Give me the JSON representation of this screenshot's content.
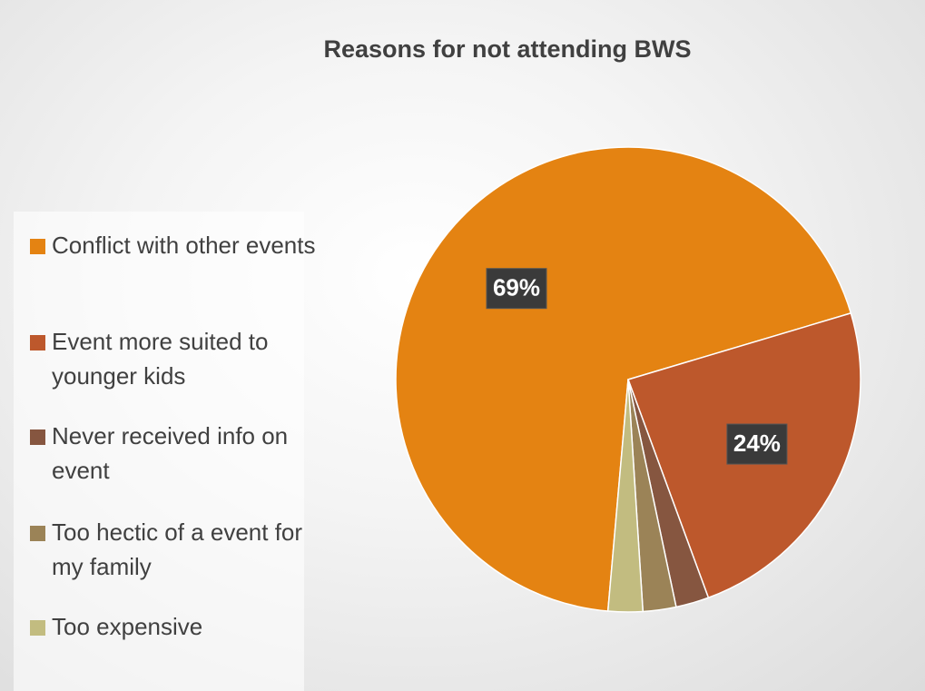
{
  "chart_data": {
    "type": "pie",
    "title": "Reasons for not attending BWS",
    "categories": [
      "Conflict with other events",
      "Event more suited to younger kids",
      "Never received info on event",
      "Too hectic of a event for my family",
      "Too expensive"
    ],
    "values": [
      69,
      24,
      2.3,
      2.3,
      2.4
    ],
    "value_labels": [
      "69%",
      "24%",
      null,
      null,
      null
    ],
    "colors": [
      "#E48312",
      "#BD582C",
      "#865640",
      "#9B8357",
      "#C2BC80"
    ],
    "start_angle": 185,
    "legend": "left"
  }
}
